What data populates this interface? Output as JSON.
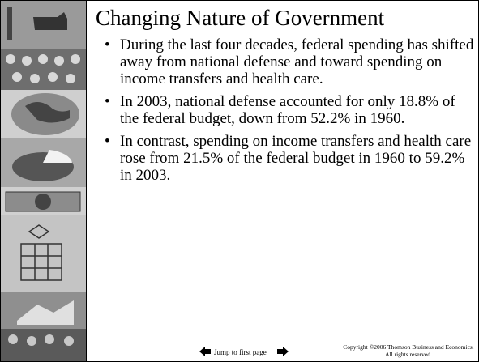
{
  "slide": {
    "title": "Changing Nature of Government",
    "bullets": [
      "During the last four decades, federal spending has shifted away from national defense and toward spending on income transfers and health care.",
      "In 2003, national defense accounted for only 18.8% of the federal budget, down from 52.2% in 1960.",
      "In contrast, spending on income transfers and health care rose from 21.5% of the federal budget in 1960 to 59.2% in 2003."
    ],
    "footer": {
      "link": "Jump to first page",
      "copyright": "Copyright ©2006 Thomson Business and Economics. All rights reserved."
    }
  }
}
